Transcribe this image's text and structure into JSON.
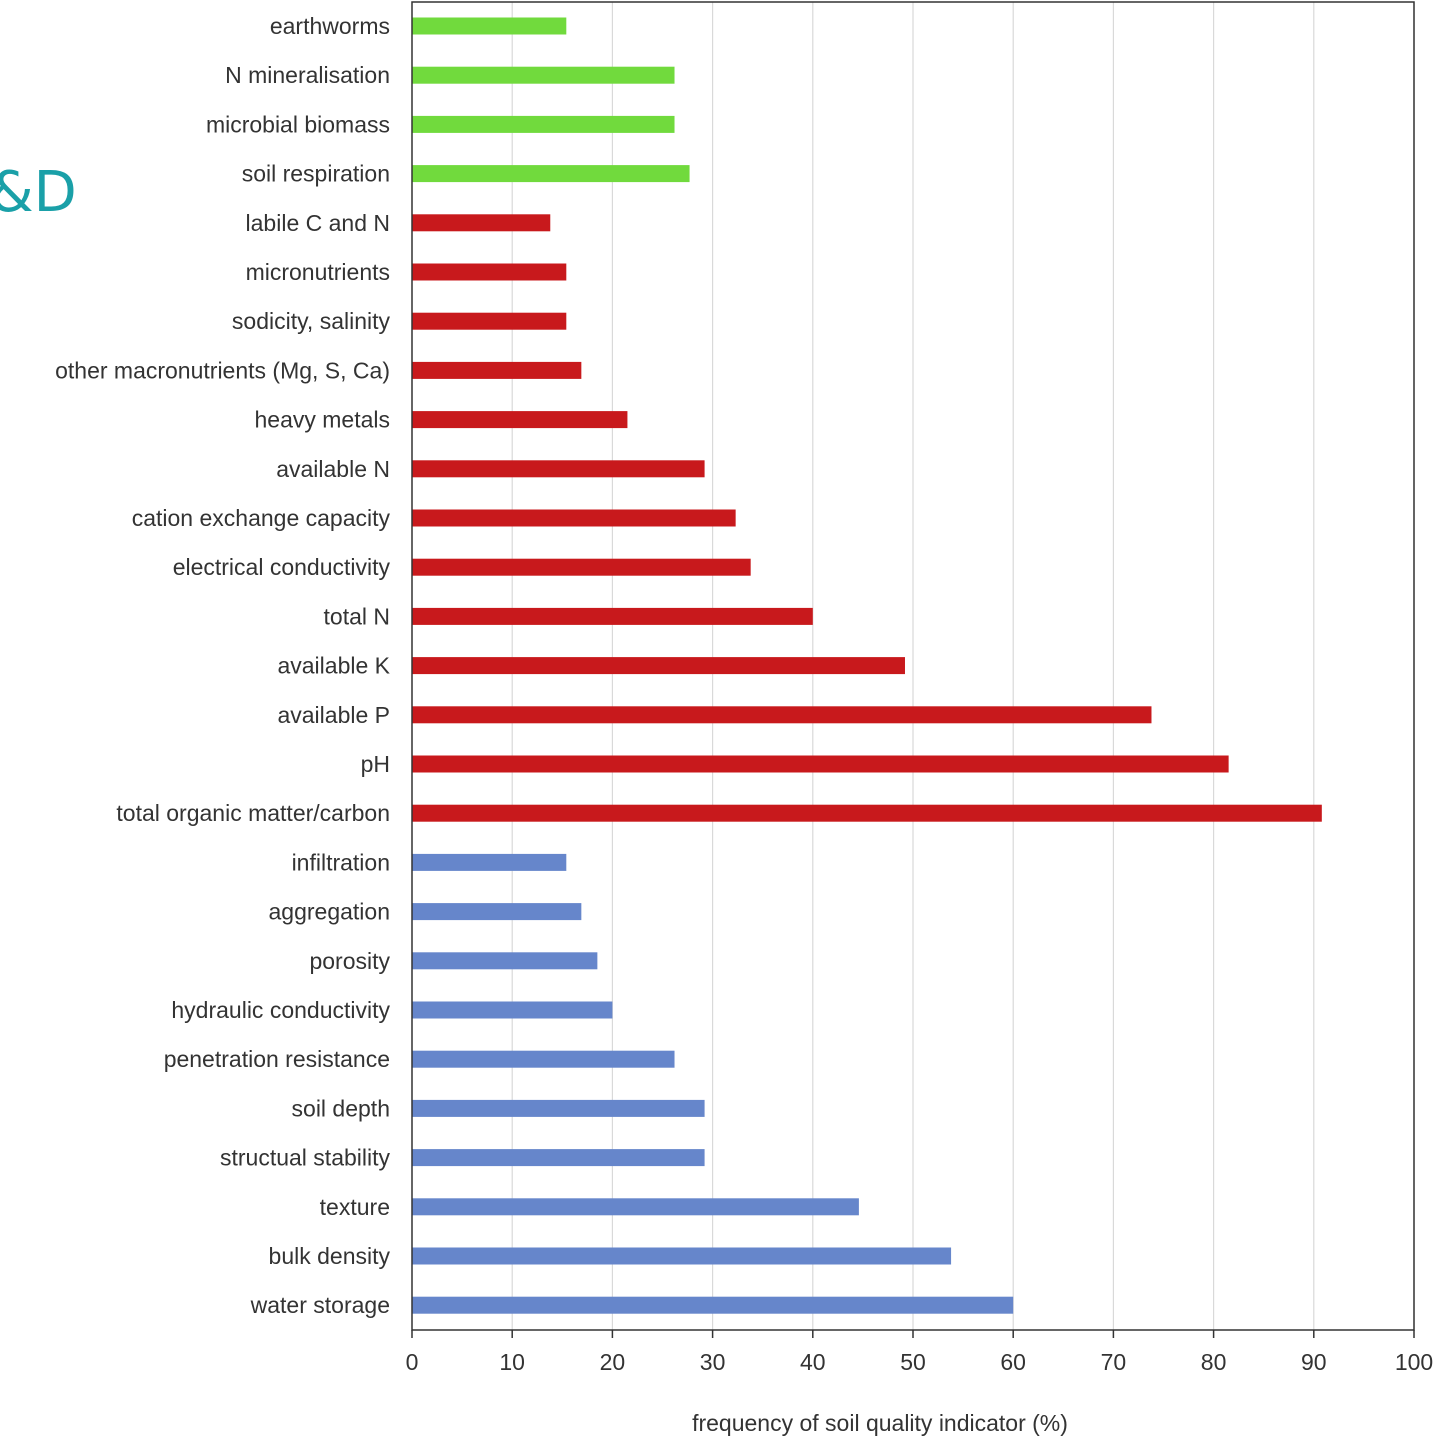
{
  "fragment_text": "&D",
  "chart_data": {
    "type": "bar",
    "orientation": "horizontal",
    "categories": [
      "earthworms",
      "N mineralisation",
      "microbial biomass",
      "soil respiration",
      "labile C and N",
      "micronutrients",
      "sodicity, salinity",
      "other macronutrients (Mg, S, Ca)",
      "heavy metals",
      "available N",
      "cation exchange capacity",
      "electrical conductivity",
      "total N",
      "available K",
      "available P",
      "pH",
      "total organic matter/carbon",
      "infiltration",
      "aggregation",
      "porosity",
      "hydraulic conductivity",
      "penetration resistance",
      "soil depth",
      "structual stability",
      "texture",
      "bulk density",
      "water storage"
    ],
    "values": [
      15.4,
      26.2,
      26.2,
      27.7,
      13.8,
      15.4,
      15.4,
      16.9,
      21.5,
      29.2,
      32.3,
      33.8,
      40.0,
      49.2,
      73.8,
      81.5,
      90.8,
      15.4,
      16.9,
      18.5,
      20.0,
      26.2,
      29.2,
      29.2,
      44.6,
      53.8,
      60.0
    ],
    "bar_colors": [
      "#71da3d",
      "#71da3d",
      "#71da3d",
      "#71da3d",
      "#c8191c",
      "#c8191c",
      "#c8191c",
      "#c8191c",
      "#c8191c",
      "#c8191c",
      "#c8191c",
      "#c8191c",
      "#c8191c",
      "#c8191c",
      "#c8191c",
      "#c8191c",
      "#c8191c",
      "#6686cb",
      "#6686cb",
      "#6686cb",
      "#6686cb",
      "#6686cb",
      "#6686cb",
      "#6686cb",
      "#6686cb",
      "#6686cb",
      "#6686cb"
    ],
    "xlim": [
      0,
      100
    ],
    "x_ticks": [
      0,
      10,
      20,
      30,
      40,
      50,
      60,
      70,
      80,
      90,
      100
    ],
    "xlabel": "frequency of soil quality  indicator (%)",
    "title": "",
    "grid": "vertical gridlines on",
    "axis_color": "#333333",
    "grid_color": "#d9d9d9"
  }
}
